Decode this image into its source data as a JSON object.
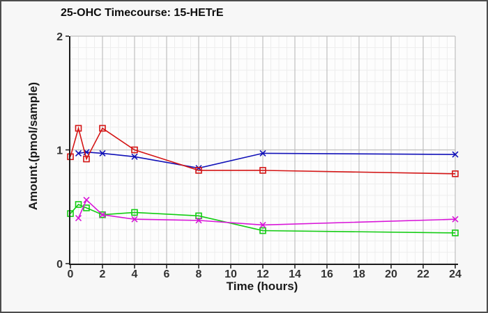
{
  "window": {
    "background": "#f7f7f7",
    "border_color": "#4d4d4d",
    "plot_background": "#fdfdfd"
  },
  "chart_data": {
    "type": "line",
    "title": "25-OHC Timecourse: 15-HETrE",
    "xlabel": "Time (hours)",
    "ylabel": "Amount.(pmol/sample)",
    "xlim": [
      0,
      24
    ],
    "ylim": [
      0,
      2
    ],
    "x_ticks": [
      0,
      2,
      4,
      6,
      8,
      10,
      12,
      14,
      16,
      18,
      20,
      22,
      24
    ],
    "y_ticks": [
      0,
      1,
      2
    ],
    "grid": "major gray lines at every x tick and y tick; faint minor grid every 0.5 h and every 0.1 units",
    "legend": "none",
    "minor_x_step": 0.5,
    "minor_y_step": 0.1,
    "colors": {
      "axis": "#1a1a1a",
      "tick_label": "#333333",
      "major_grid": "#bfbfbf",
      "minor_grid": "#ededed"
    },
    "series": [
      {
        "name": "red-squares",
        "color": "#d41414",
        "marker": "square",
        "x": [
          0,
          0.5,
          1,
          2,
          4,
          8,
          12,
          24
        ],
        "values": [
          0.94,
          1.19,
          0.92,
          1.19,
          1.0,
          0.82,
          0.82,
          0.79
        ]
      },
      {
        "name": "blue-x",
        "color": "#1010b8",
        "marker": "x",
        "x": [
          0.5,
          1,
          2,
          4,
          8,
          12,
          24
        ],
        "values": [
          0.97,
          0.98,
          0.97,
          0.94,
          0.84,
          0.97,
          0.96
        ]
      },
      {
        "name": "green-squares",
        "color": "#12cc12",
        "marker": "square",
        "x": [
          0,
          0.5,
          1,
          2,
          4,
          8,
          12,
          24
        ],
        "values": [
          0.44,
          0.52,
          0.49,
          0.43,
          0.45,
          0.42,
          0.29,
          0.27
        ]
      },
      {
        "name": "magenta-x",
        "color": "#d814d8",
        "marker": "x",
        "x": [
          0.5,
          1,
          2,
          4,
          8,
          12,
          24
        ],
        "values": [
          0.4,
          0.56,
          0.43,
          0.39,
          0.38,
          0.34,
          0.39
        ]
      }
    ]
  }
}
